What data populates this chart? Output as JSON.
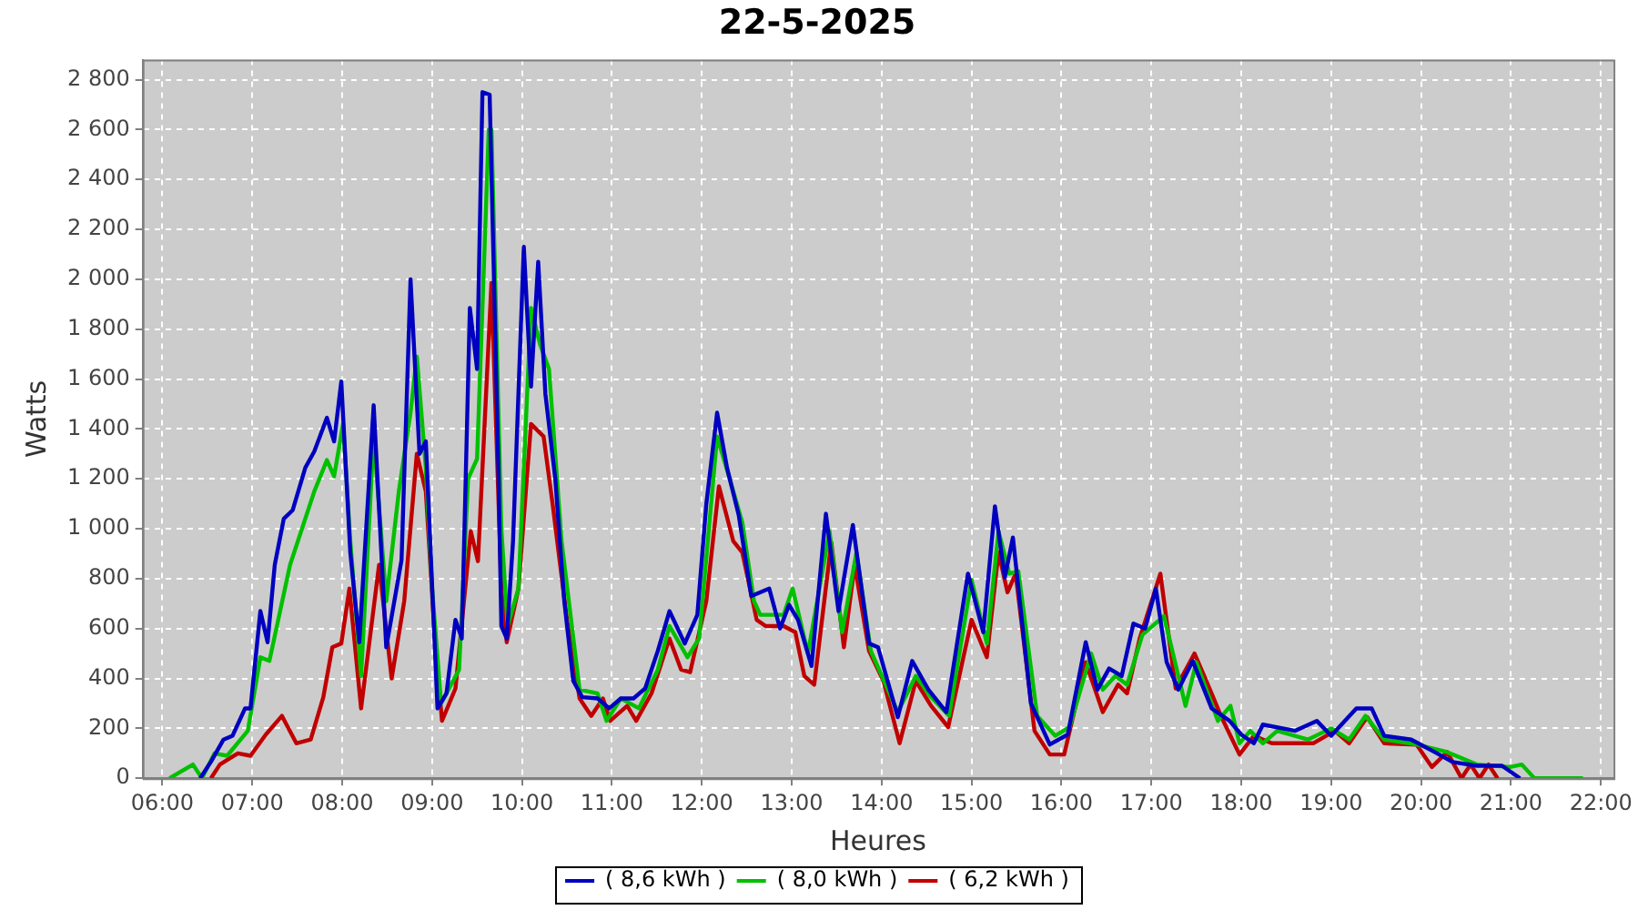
{
  "chart_data": {
    "type": "line",
    "title": "22-5-2025",
    "xlabel": "Heures",
    "ylabel": "Watts",
    "xlim": [
      5.78,
      22.14
    ],
    "ylim": [
      0,
      2880
    ],
    "xticks": [
      {
        "value": 6,
        "label": "06:00"
      },
      {
        "value": 7,
        "label": "07:00"
      },
      {
        "value": 8,
        "label": "08:00"
      },
      {
        "value": 9,
        "label": "09:00"
      },
      {
        "value": 10,
        "label": "10:00"
      },
      {
        "value": 11,
        "label": "11:00"
      },
      {
        "value": 12,
        "label": "12:00"
      },
      {
        "value": 13,
        "label": "13:00"
      },
      {
        "value": 14,
        "label": "14:00"
      },
      {
        "value": 15,
        "label": "15:00"
      },
      {
        "value": 16,
        "label": "16:00"
      },
      {
        "value": 17,
        "label": "17:00"
      },
      {
        "value": 18,
        "label": "18:00"
      },
      {
        "value": 19,
        "label": "19:00"
      },
      {
        "value": 20,
        "label": "20:00"
      },
      {
        "value": 21,
        "label": "21:00"
      },
      {
        "value": 22,
        "label": "22:00"
      }
    ],
    "yticks": [
      0,
      200,
      400,
      600,
      800,
      {
        "value": 1000,
        "label": "1 000"
      },
      {
        "value": 1200,
        "label": "1 200"
      },
      {
        "value": 1400,
        "label": "1 400"
      },
      {
        "value": 1600,
        "label": "1 600"
      },
      {
        "value": 1800,
        "label": "1 800"
      },
      {
        "value": 2000,
        "label": "2 000"
      },
      {
        "value": 2200,
        "label": "2 200"
      },
      {
        "value": 2400,
        "label": "2 400"
      },
      {
        "value": 2600,
        "label": "2 600"
      },
      {
        "value": 2800,
        "label": "2 800"
      }
    ],
    "grid": true,
    "legend": "bottom",
    "line_style": "solid",
    "series": [
      {
        "name": "( 8,6 kWh )",
        "color": "#0000c0",
        "x": [
          6.42,
          6.54,
          6.68,
          6.78,
          6.92,
          6.98,
          7.09,
          7.17,
          7.25,
          7.35,
          7.45,
          7.59,
          7.69,
          7.83,
          7.91,
          7.99,
          8.09,
          8.19,
          8.35,
          8.49,
          8.66,
          8.76,
          8.86,
          8.93,
          9.06,
          9.16,
          9.26,
          9.33,
          9.42,
          9.5,
          9.56,
          9.64,
          9.74,
          9.77,
          9.83,
          9.9,
          10.02,
          10.1,
          10.18,
          10.26,
          10.37,
          10.47,
          10.57,
          10.67,
          10.84,
          10.97,
          11.1,
          11.24,
          11.37,
          11.51,
          11.64,
          11.81,
          11.95,
          12.05,
          12.17,
          12.28,
          12.41,
          12.55,
          12.75,
          12.87,
          12.97,
          13.07,
          13.22,
          13.38,
          13.52,
          13.68,
          13.86,
          13.96,
          14.18,
          14.34,
          14.52,
          14.72,
          14.96,
          15.13,
          15.26,
          15.37,
          15.46,
          15.66,
          15.87,
          16.07,
          16.27,
          16.4,
          16.53,
          16.67,
          16.8,
          16.93,
          17.05,
          17.17,
          17.3,
          17.46,
          17.67,
          17.87,
          18.0,
          18.14,
          18.24,
          18.6,
          18.84,
          19.0,
          19.28,
          19.45,
          19.59,
          19.89,
          20.15,
          20.35,
          20.62,
          20.9,
          21.1
        ],
        "values": [
          0,
          66,
          155,
          170,
          280,
          280,
          670,
          545,
          855,
          1040,
          1075,
          1245,
          1310,
          1445,
          1350,
          1590,
          905,
          545,
          1495,
          525,
          875,
          2000,
          1300,
          1350,
          280,
          340,
          635,
          560,
          1885,
          1640,
          2750,
          2740,
          1200,
          610,
          560,
          950,
          2130,
          1570,
          2070,
          1540,
          1200,
          710,
          390,
          325,
          320,
          280,
          320,
          320,
          360,
          510,
          670,
          540,
          655,
          1100,
          1465,
          1245,
          1055,
          730,
          760,
          600,
          695,
          635,
          450,
          1060,
          670,
          1015,
          540,
          525,
          245,
          470,
          355,
          265,
          820,
          585,
          1090,
          805,
          965,
          300,
          135,
          175,
          545,
          355,
          440,
          410,
          620,
          600,
          760,
          465,
          355,
          470,
          280,
          230,
          175,
          140,
          215,
          190,
          230,
          170,
          280,
          280,
          170,
          155,
          105,
          65,
          50,
          50,
          0
        ]
      },
      {
        "name": "( 8,0 kWh )",
        "color": "#00c000",
        "x": [
          6.08,
          6.34,
          6.44,
          6.58,
          6.72,
          6.95,
          7.09,
          7.19,
          7.42,
          7.69,
          7.83,
          7.91,
          8.01,
          8.09,
          8.21,
          8.35,
          8.49,
          8.63,
          8.76,
          8.83,
          8.93,
          9.0,
          9.1,
          9.3,
          9.4,
          9.5,
          9.63,
          9.66,
          9.77,
          9.84,
          9.96,
          10.1,
          10.2,
          10.3,
          10.44,
          10.64,
          10.84,
          10.94,
          11.1,
          11.3,
          11.51,
          11.64,
          11.84,
          11.97,
          12.17,
          12.35,
          12.45,
          12.58,
          12.65,
          12.91,
          13.01,
          13.18,
          13.42,
          13.56,
          13.72,
          13.88,
          14.18,
          14.38,
          14.55,
          14.75,
          15.0,
          15.17,
          15.3,
          15.42,
          15.52,
          15.73,
          15.93,
          16.09,
          16.33,
          16.46,
          16.6,
          16.73,
          16.9,
          17.14,
          17.38,
          17.5,
          17.74,
          17.88,
          17.98,
          18.1,
          18.24,
          18.4,
          18.74,
          19.0,
          19.2,
          19.38,
          19.59,
          19.95,
          20.29,
          20.62,
          20.99,
          21.12,
          21.26,
          21.8
        ],
        "values": [
          0,
          55,
          0,
          100,
          90,
          190,
          485,
          470,
          855,
          1150,
          1275,
          1210,
          1420,
          950,
          410,
          1370,
          710,
          1150,
          1465,
          1690,
          1245,
          760,
          300,
          435,
          1200,
          1280,
          2600,
          2600,
          1000,
          610,
          760,
          1885,
          1740,
          1640,
          950,
          355,
          340,
          230,
          320,
          280,
          435,
          610,
          485,
          560,
          1370,
          1150,
          1025,
          710,
          655,
          655,
          760,
          500,
          990,
          585,
          905,
          510,
          265,
          410,
          325,
          250,
          795,
          540,
          990,
          820,
          830,
          250,
          170,
          205,
          500,
          355,
          410,
          375,
          575,
          650,
          290,
          465,
          230,
          290,
          140,
          190,
          140,
          190,
          155,
          200,
          155,
          250,
          155,
          135,
          105,
          55,
          45,
          55,
          0,
          0
        ]
      },
      {
        "name": "( 6,2 kWh )",
        "color": "#c00000",
        "x": [
          6.54,
          6.64,
          6.84,
          6.98,
          7.15,
          7.33,
          7.49,
          7.65,
          7.79,
          7.89,
          7.99,
          8.08,
          8.21,
          8.41,
          8.55,
          8.69,
          8.83,
          8.93,
          9.03,
          9.11,
          9.26,
          9.43,
          9.51,
          9.66,
          9.77,
          9.83,
          9.96,
          10.1,
          10.24,
          10.34,
          10.5,
          10.64,
          10.77,
          10.9,
          10.98,
          11.17,
          11.27,
          11.44,
          11.64,
          11.77,
          11.87,
          12.05,
          12.19,
          12.35,
          12.45,
          12.61,
          12.71,
          12.91,
          13.04,
          13.14,
          13.25,
          13.44,
          13.58,
          13.7,
          13.86,
          14.02,
          14.2,
          14.38,
          14.55,
          14.74,
          15.0,
          15.17,
          15.3,
          15.4,
          15.49,
          15.7,
          15.87,
          16.03,
          16.27,
          16.46,
          16.63,
          16.73,
          16.87,
          17.1,
          17.27,
          17.48,
          17.6,
          17.78,
          17.98,
          18.14,
          18.34,
          18.8,
          19.04,
          19.2,
          19.4,
          19.59,
          19.95,
          20.12,
          20.29,
          20.45,
          20.55,
          20.65,
          20.75,
          20.85
        ],
        "values": [
          0,
          55,
          100,
          90,
          175,
          250,
          140,
          155,
          325,
          525,
          540,
          760,
          280,
          855,
          400,
          710,
          1300,
          1150,
          560,
          230,
          360,
          990,
          870,
          1985,
          760,
          545,
          760,
          1420,
          1370,
          1100,
          635,
          320,
          250,
          320,
          230,
          290,
          230,
          340,
          560,
          435,
          425,
          710,
          1170,
          950,
          905,
          635,
          610,
          610,
          585,
          410,
          375,
          945,
          525,
          855,
          510,
          390,
          140,
          390,
          290,
          205,
          635,
          485,
          905,
          745,
          820,
          190,
          95,
          95,
          465,
          265,
          375,
          340,
          560,
          820,
          360,
          500,
          400,
          245,
          95,
          170,
          140,
          140,
          190,
          140,
          245,
          140,
          135,
          45,
          105,
          0,
          55,
          0,
          55,
          0
        ]
      }
    ]
  }
}
